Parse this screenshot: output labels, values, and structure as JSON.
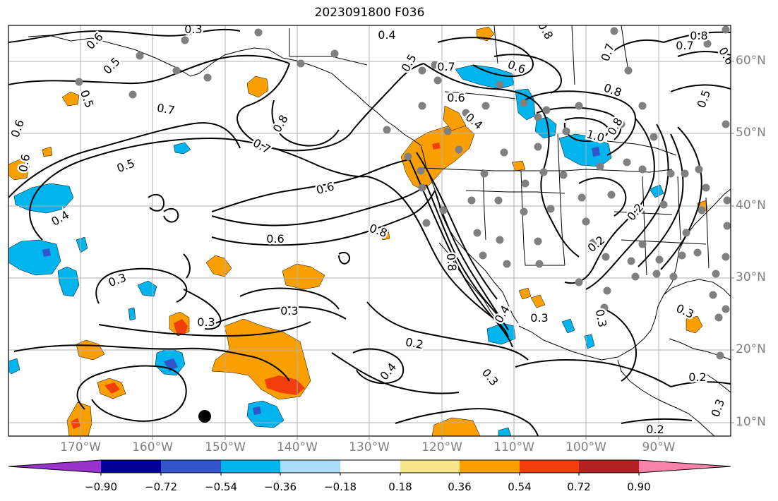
{
  "title": "2023091800 F036",
  "lat_labels": [
    "60°N",
    "50°N",
    "40°N",
    "30°N",
    "20°N",
    "10°N"
  ],
  "lon_labels": [
    "170°W",
    "160°W",
    "150°W",
    "140°W",
    "130°W",
    "120°W",
    "110°W",
    "100°W",
    "90°W"
  ],
  "contour_labels": [
    "0.3",
    "0.6",
    "0.4",
    "0.5",
    "0.7",
    "0.8",
    "0.6",
    "0.5",
    "0.6",
    "0.7",
    "0.8",
    "0.6",
    "0.5",
    "0.4",
    "0.6",
    "0.4",
    "0.6",
    "0.5",
    "0.8",
    "0.7",
    "0.8",
    "1.0",
    "0.8",
    "0.7",
    "0.6",
    "0.5",
    "0.7",
    "0.8",
    "0.6",
    "0.3",
    "0.3",
    "0.3",
    "0.2",
    "0.4",
    "0.3",
    "0.8",
    "0.3",
    "0.3",
    "0.2",
    "0.2",
    "0.2",
    "0.3",
    "0.4",
    "0.2",
    "0.3"
  ],
  "colorbar": {
    "ticks": [
      "−0.90",
      "−0.72",
      "−0.54",
      "−0.36",
      "−0.18",
      "0.18",
      "0.36",
      "0.54",
      "0.72",
      "0.90"
    ],
    "colors": [
      "#9933cc",
      "#000099",
      "#3355cc",
      "#00b4ee",
      "#aadcf7",
      "#ffffff",
      "#fae68a",
      "#f9a000",
      "#f23d0c",
      "#b22222",
      "#f783a9"
    ]
  },
  "colors": {
    "contour": "#000000",
    "grid": "#b0b0b0",
    "coast": "#000000",
    "station_dot": "#808080",
    "positive_fill": "#f9a000",
    "negative_fill": "#00b4ee"
  },
  "icons": [
    "station-dot-marker",
    "storm-center-marker"
  ]
}
